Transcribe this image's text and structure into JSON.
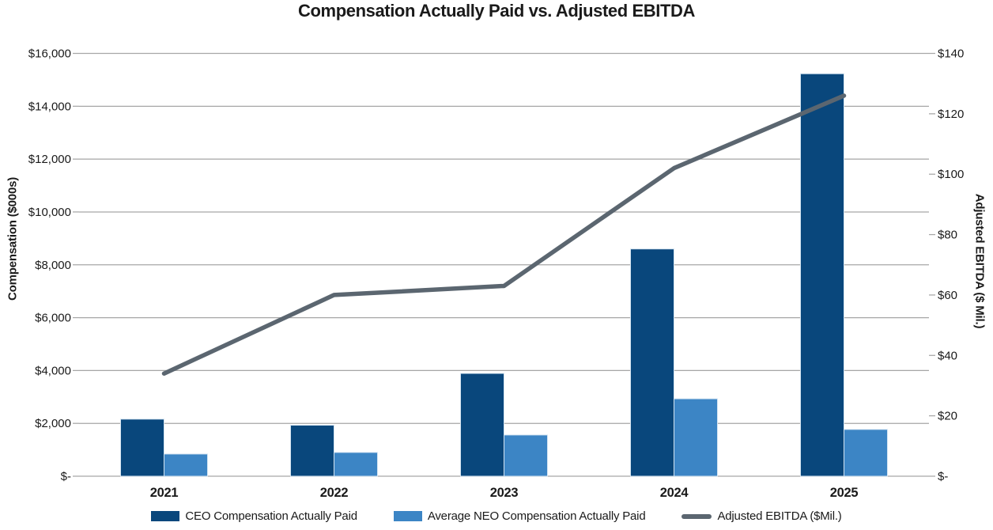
{
  "title": "Compensation Actually Paid vs. Adjusted EBITDA",
  "colors": {
    "ceo_bar": "#09477C",
    "neo_bar": "#3C85C5",
    "ebitda_line": "#5B6670",
    "gridline": "#A6A6A6",
    "bar_edge": "#D5E5F2",
    "text": "#1A1A1A"
  },
  "left_axis": {
    "title": "Compensation ($000s)"
  },
  "right_axis": {
    "title": "Adjusted EBITDA ($ Mil.)"
  },
  "legend": {
    "entries": [
      {
        "label": "CEO Compensation Actually Paid",
        "swatch": "bar",
        "color_key": "ceo_bar"
      },
      {
        "label": "Average NEO Compensation Actually Paid",
        "swatch": "bar",
        "color_key": "neo_bar"
      },
      {
        "label": "Adjusted EBITDA ($Mil.)",
        "swatch": "line",
        "color_key": "ebitda_line"
      }
    ]
  },
  "chart_data": {
    "type": "bar",
    "subtype": "grouped-bars-with-line-overlay-dual-axis",
    "title": "Compensation Actually Paid vs. Adjusted EBITDA",
    "categories": [
      "2021",
      "2022",
      "2023",
      "2024",
      "2025"
    ],
    "series": [
      {
        "name": "CEO Compensation Actually Paid",
        "type": "bar",
        "axis": "left",
        "values": [
          2160,
          1930,
          3890,
          8600,
          15230
        ]
      },
      {
        "name": "Average NEO Compensation Actually Paid",
        "type": "bar",
        "axis": "left",
        "values": [
          840,
          900,
          1560,
          2930,
          1770
        ]
      },
      {
        "name": "Adjusted EBITDA ($Mil.)",
        "type": "line",
        "axis": "right",
        "values": [
          34,
          60,
          63,
          102,
          126
        ]
      }
    ],
    "left_axis": {
      "label": "Compensation ($000s)",
      "min": 0,
      "max": 16000,
      "step": 2000,
      "tick_labels": [
        "$-",
        "$2,000",
        "$4,000",
        "$6,000",
        "$8,000",
        "$10,000",
        "$12,000",
        "$14,000",
        "$16,000"
      ]
    },
    "right_axis": {
      "label": "Adjusted EBITDA ($ Mil.)",
      "min": 0,
      "max": 140,
      "step": 20,
      "tick_labels": [
        "$-",
        "$20",
        "$40",
        "$60",
        "$80",
        "$100",
        "$120",
        "$140"
      ]
    },
    "grid": true,
    "legend_position": "bottom"
  }
}
